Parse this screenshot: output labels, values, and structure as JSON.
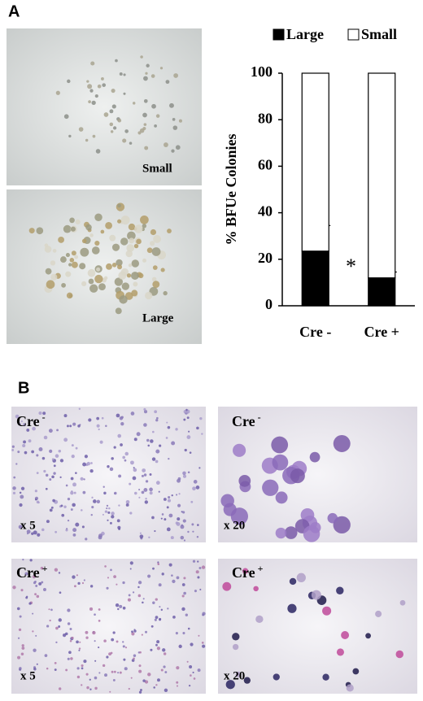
{
  "chart_data": {
    "type": "bar",
    "stacked": true,
    "categories": [
      "Cre -",
      "Cre +"
    ],
    "series": [
      {
        "name": "Large",
        "color": "#000000",
        "values": [
          23.5,
          12
        ],
        "errors": [
          11,
          2.5
        ]
      },
      {
        "name": "Small",
        "color": "#ffffff",
        "values": [
          76.5,
          88
        ]
      }
    ],
    "ylabel": "% BFUe Colonies",
    "ylim": [
      0,
      100
    ],
    "yticks": [
      0,
      20,
      40,
      60,
      80,
      100
    ],
    "annotation": "*"
  },
  "panel_labels": [
    "A",
    "B"
  ],
  "micrographs": [
    {
      "label": "Small"
    },
    {
      "label": "Large"
    },
    {
      "label": "Cre",
      "sup": "-",
      "mag": "x 5"
    },
    {
      "label": "Cre",
      "sup": "-",
      "mag": "x 20"
    },
    {
      "label": "Cre",
      "sup": "+",
      "mag": "x 5"
    },
    {
      "label": "Cre",
      "sup": "+",
      "mag": "x 20"
    }
  ]
}
